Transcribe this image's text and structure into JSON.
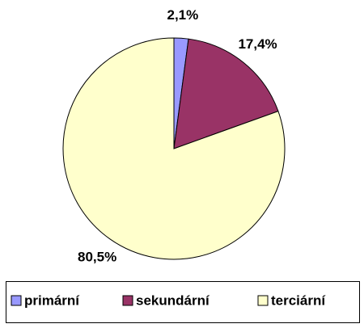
{
  "chart_data": {
    "type": "pie",
    "categories": [
      "primární",
      "sekundární",
      "terciární"
    ],
    "values": [
      2.1,
      17.4,
      80.5
    ],
    "value_labels": [
      "2,1%",
      "17,4%",
      "80,5%"
    ],
    "colors": [
      "#9999ff",
      "#993366",
      "#ffffcc"
    ],
    "legend": "bottom"
  }
}
